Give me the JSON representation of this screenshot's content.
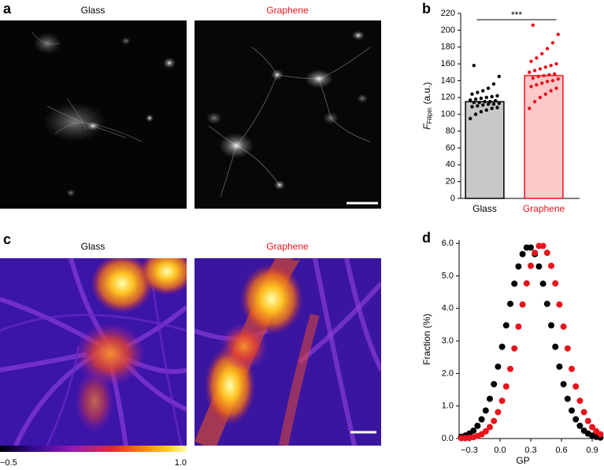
{
  "panel_labels": [
    "a",
    "b",
    "c",
    "d"
  ],
  "images": {
    "a": {
      "titles": [
        "Glass",
        "Graphene"
      ]
    },
    "c": {
      "titles": [
        "Glass",
        "Graphene"
      ]
    }
  },
  "colorbar": {
    "ticks": [
      {
        "value": -0.5,
        "label": "−0.5"
      },
      {
        "value": 1.0,
        "label": "1.0"
      }
    ]
  },
  "chart_data": [
    {
      "type": "bar",
      "categories": [
        "Glass",
        "Graphene"
      ],
      "values": [
        115,
        146
      ],
      "colors": [
        "#000000",
        "#e8141c"
      ],
      "fills": [
        "#c8c8c8",
        "#fcc8c8"
      ],
      "points": [
        [
          95,
          100,
          103,
          105,
          107,
          108,
          109,
          110,
          111,
          112,
          112,
          113,
          114,
          114,
          115,
          115,
          116,
          117,
          118,
          119,
          120,
          121,
          122,
          124,
          126,
          128,
          131,
          136,
          145,
          158
        ],
        [
          107,
          115,
          120,
          124,
          128,
          131,
          133,
          135,
          137,
          139,
          140,
          142,
          143,
          145,
          146,
          147,
          148,
          150,
          152,
          154,
          156,
          158,
          160,
          163,
          167,
          172,
          178,
          185,
          195,
          206
        ]
      ],
      "ylim": [
        0,
        220
      ],
      "yticks": [
        0,
        20,
        40,
        60,
        80,
        100,
        120,
        140,
        160,
        180,
        200,
        220
      ],
      "y_label": {
        "symbol": "F",
        "subscript": "Filipin",
        "unit": "(a.u.)"
      },
      "annotation": "***"
    },
    {
      "type": "scatter",
      "x": [
        -0.38,
        -0.34,
        -0.3,
        -0.26,
        -0.22,
        -0.18,
        -0.14,
        -0.1,
        -0.06,
        -0.02,
        0.02,
        0.06,
        0.1,
        0.14,
        0.18,
        0.22,
        0.26,
        0.3,
        0.34,
        0.38,
        0.42,
        0.46,
        0.5,
        0.54,
        0.58,
        0.62,
        0.66,
        0.7,
        0.74,
        0.78,
        0.82,
        0.86,
        0.9,
        0.94,
        0.98
      ],
      "series": [
        {
          "color": "#000000",
          "values": [
            0.05,
            0.09,
            0.15,
            0.24,
            0.39,
            0.59,
            0.86,
            1.22,
            1.67,
            2.21,
            2.82,
            3.48,
            4.14,
            4.76,
            5.29,
            5.67,
            5.87,
            5.87,
            5.67,
            5.29,
            4.76,
            4.14,
            3.48,
            2.82,
            2.21,
            1.67,
            1.22,
            0.86,
            0.59,
            0.39,
            0.24,
            0.15,
            0.09,
            0.05,
            0.03
          ]
        },
        {
          "color": "#e8141c",
          "values": [
            0.01,
            0.01,
            0.02,
            0.04,
            0.08,
            0.13,
            0.22,
            0.35,
            0.54,
            0.81,
            1.16,
            1.6,
            2.14,
            2.77,
            3.44,
            4.12,
            4.77,
            5.31,
            5.71,
            5.92,
            5.92,
            5.71,
            5.31,
            4.77,
            4.12,
            3.44,
            2.77,
            2.14,
            1.6,
            1.16,
            0.81,
            0.54,
            0.35,
            0.22,
            0.13
          ]
        }
      ],
      "xlim": [
        -0.4,
        1.0
      ],
      "xticks": [
        {
          "value": -0.3,
          "label": "−0.3"
        },
        {
          "value": 0,
          "label": "0.0"
        },
        {
          "value": 0.3,
          "label": "0.3"
        },
        {
          "value": 0.6,
          "label": "0.6"
        },
        {
          "value": 0.9,
          "label": "0.9"
        }
      ],
      "ylim": [
        0,
        6.1
      ],
      "yticks": [
        {
          "value": 0,
          "label": "0.0"
        },
        {
          "value": 1,
          "label": "1.0"
        },
        {
          "value": 2,
          "label": "2.0"
        },
        {
          "value": 3,
          "label": "3.0"
        },
        {
          "value": 4,
          "label": "4.0"
        },
        {
          "value": 5,
          "label": "5.0"
        },
        {
          "value": 6,
          "label": "6.0"
        }
      ],
      "x_label": "GP",
      "y_label": "Fraction (%)"
    }
  ]
}
